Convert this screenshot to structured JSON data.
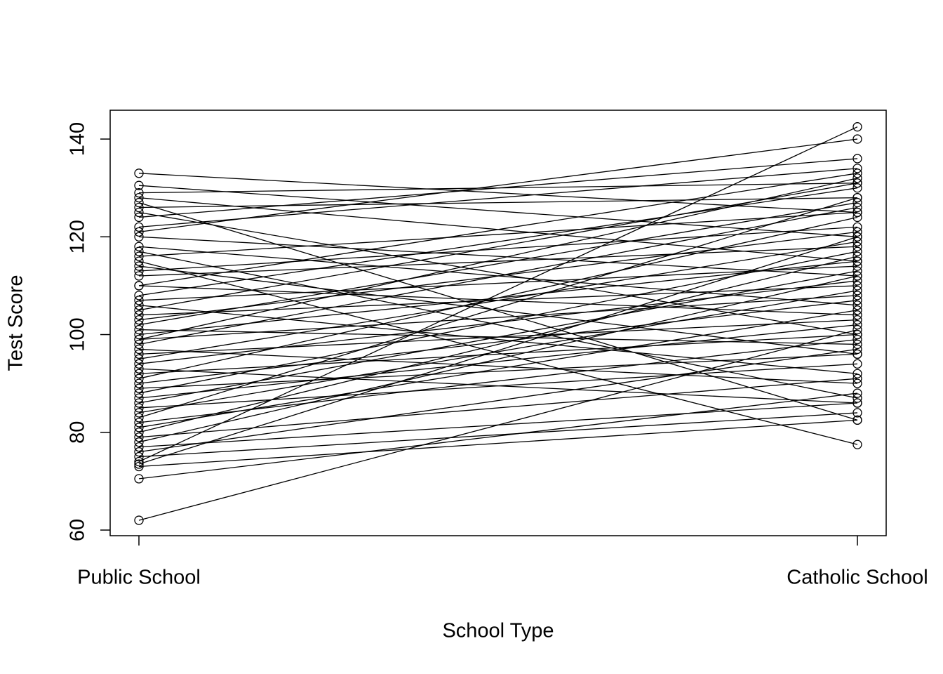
{
  "chart_data": {
    "type": "line",
    "x_label": "School Type",
    "y_label": "Test Score",
    "categories": [
      "Public School",
      "Catholic School"
    ],
    "color": "#000000",
    "ylim": [
      58.85,
      145.9
    ],
    "yticks": [
      60,
      80,
      100,
      120,
      140
    ],
    "series": [
      {
        "values": [
          133,
          125
        ]
      },
      {
        "values": [
          130.5,
          120
        ]
      },
      {
        "values": [
          129,
          131
        ]
      },
      {
        "values": [
          128,
          115
        ]
      },
      {
        "values": [
          126,
          128
        ]
      },
      {
        "values": [
          125,
          100
        ]
      },
      {
        "values": [
          122,
          134
        ]
      },
      {
        "values": [
          120,
          112
        ]
      },
      {
        "values": [
          118,
          106
        ]
      },
      {
        "values": [
          116,
          125
        ]
      },
      {
        "values": [
          114,
          96
        ]
      },
      {
        "values": [
          112,
          118
        ]
      },
      {
        "values": [
          110,
          104
        ]
      },
      {
        "values": [
          108,
          130
        ]
      },
      {
        "values": [
          106,
          92
        ]
      },
      {
        "values": [
          104,
          110
        ]
      },
      {
        "values": [
          103,
          121
        ]
      },
      {
        "values": [
          101,
          98
        ]
      },
      {
        "values": [
          100,
          115
        ]
      },
      {
        "values": [
          99,
          108
        ]
      },
      {
        "values": [
          98,
          126
        ]
      },
      {
        "values": [
          97,
          90
        ]
      },
      {
        "values": [
          96,
          103
        ]
      },
      {
        "values": [
          95,
          119
        ]
      },
      {
        "values": [
          94,
          111
        ]
      },
      {
        "values": [
          93,
          86
        ]
      },
      {
        "values": [
          92,
          100
        ]
      },
      {
        "values": [
          91,
          124
        ]
      },
      {
        "values": [
          90,
          107
        ]
      },
      {
        "values": [
          89,
          96
        ]
      },
      {
        "values": [
          88,
          117
        ]
      },
      {
        "values": [
          87,
          102
        ]
      },
      {
        "values": [
          86,
          113
        ]
      },
      {
        "values": [
          85,
          94
        ]
      },
      {
        "values": [
          84,
          109
        ]
      },
      {
        "values": [
          83,
          128
        ]
      },
      {
        "values": [
          82,
          99
        ]
      },
      {
        "values": [
          81,
          105
        ]
      },
      {
        "values": [
          80,
          116
        ]
      },
      {
        "values": [
          79,
          91
        ]
      },
      {
        "values": [
          78,
          112
        ]
      },
      {
        "values": [
          77,
          86
        ]
      },
      {
        "values": [
          76,
          97
        ]
      },
      {
        "values": [
          75,
          84
        ]
      },
      {
        "values": [
          74,
          142.5
        ]
      },
      {
        "values": [
          73.5,
          120
        ]
      },
      {
        "values": [
          73,
          82.5
        ]
      },
      {
        "values": [
          70.5,
          88
        ]
      },
      {
        "values": [
          62,
          101
        ]
      },
      {
        "values": [
          115,
          77.5
        ]
      },
      {
        "values": [
          127,
          82.5
        ]
      },
      {
        "values": [
          121,
          140
        ]
      },
      {
        "values": [
          124,
          136
        ]
      },
      {
        "values": [
          110,
          133
        ]
      },
      {
        "values": [
          105,
          131
        ]
      },
      {
        "values": [
          102,
          127
        ]
      },
      {
        "values": [
          117,
          87
        ]
      },
      {
        "values": [
          113,
          122
        ]
      },
      {
        "values": [
          107,
          114
        ]
      },
      {
        "values": [
          99,
          132
        ]
      }
    ]
  }
}
